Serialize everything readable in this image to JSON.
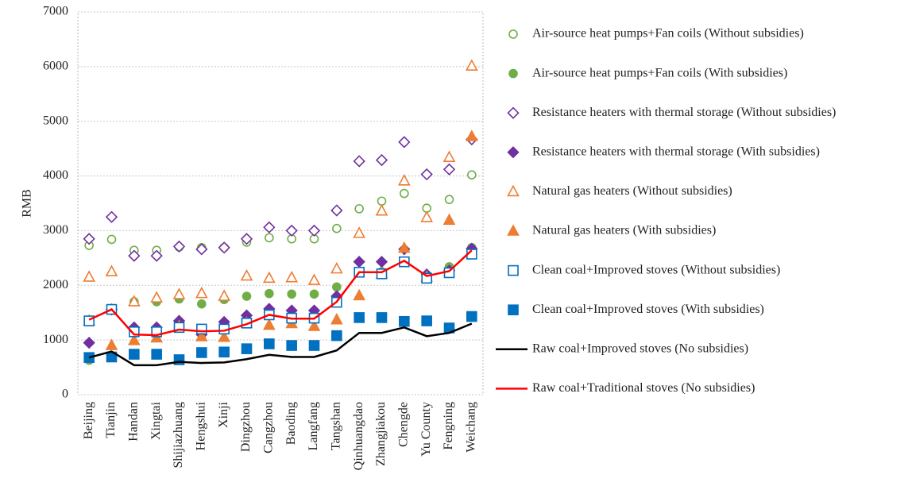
{
  "chart_data": {
    "type": "line",
    "y_label": "RMB",
    "categories": [
      "Beijing",
      "Tianjin",
      "Handan",
      "Xingtai",
      "Shijiazhuang",
      "Hengshui",
      "Xinji",
      "Dingzhou",
      "Cangzhou",
      "Baoding",
      "Langfang",
      "Tangshan",
      "Qinhuangdao",
      "Zhangjiakou",
      "Chengde",
      "Yu County",
      "Fengning",
      "Weichang"
    ],
    "ylim": [
      0,
      7000
    ],
    "yticks": [
      0,
      1000,
      2000,
      3000,
      4000,
      5000,
      6000,
      7000
    ],
    "grid": true,
    "legend": "right",
    "series": [
      {
        "name": "Air-source heat pumps+Fan coils (Without subsidies)",
        "color": "#70ad47",
        "marker": "circle",
        "filled": false,
        "values": [
          2730,
          2840,
          2640,
          2640,
          2700,
          2690,
          2690,
          2790,
          2870,
          2850,
          2850,
          3040,
          3400,
          3540,
          3680,
          3410,
          3570,
          4020
        ]
      },
      {
        "name": "Air-source heat pumps+Fan coils (With subsidies)",
        "color": "#70ad47",
        "marker": "circle",
        "filled": true,
        "values": [
          630,
          1540,
          1700,
          1700,
          1750,
          1660,
          1740,
          1800,
          1850,
          1840,
          1840,
          1970,
          2240,
          2250,
          2430,
          2190,
          2340,
          2690
        ]
      },
      {
        "name": "Resistance heaters with thermal storage (Without subsidies)",
        "color": "#7030a0",
        "marker": "diamond",
        "filled": false,
        "values": [
          2850,
          3250,
          2540,
          2540,
          2710,
          2660,
          2690,
          2850,
          3060,
          3000,
          3000,
          3370,
          4270,
          4290,
          4620,
          4030,
          4120,
          4670
        ]
      },
      {
        "name": "Resistance heaters with thermal storage (With subsidies)",
        "color": "#7030a0",
        "marker": "diamond",
        "filled": true,
        "values": [
          950,
          1560,
          1230,
          1230,
          1350,
          1100,
          1330,
          1450,
          1570,
          1540,
          1540,
          1800,
          2430,
          2430,
          2660,
          2200,
          2270,
          2670
        ]
      },
      {
        "name": "Natural gas heaters (Without subsidies)",
        "color": "#ed7d31",
        "marker": "triangle",
        "filled": false,
        "values": [
          2150,
          2250,
          1700,
          1770,
          1830,
          1850,
          1800,
          2170,
          2130,
          2140,
          2090,
          2300,
          2950,
          3360,
          3910,
          3240,
          4340,
          6010
        ]
      },
      {
        "name": "Natural gas heaters (With subsidies)",
        "color": "#ed7d31",
        "marker": "triangle",
        "filled": true,
        "values": [
          1350,
          900,
          990,
          1040,
          1250,
          1060,
          1050,
          1310,
          1270,
          1300,
          1250,
          1370,
          1810,
          2210,
          2680,
          2150,
          3190,
          4720
        ]
      },
      {
        "name": "Clean coal+Improved stoves (Without subsidies)",
        "color": "#0070c0",
        "marker": "square",
        "filled": false,
        "values": [
          1350,
          1560,
          1150,
          1150,
          1230,
          1200,
          1200,
          1310,
          1460,
          1400,
          1400,
          1690,
          2240,
          2210,
          2430,
          2130,
          2230,
          2570
        ]
      },
      {
        "name": "Clean coal+Improved stoves (With subsidies)",
        "color": "#0070c0",
        "marker": "square",
        "filled": true,
        "values": [
          680,
          690,
          740,
          740,
          640,
          770,
          780,
          840,
          930,
          900,
          900,
          1080,
          1410,
          1410,
          1340,
          1350,
          1220,
          1430
        ]
      },
      {
        "name": "Raw coal+Improved stoves (No subsidies)",
        "color": "#000000",
        "marker": "none",
        "filled": false,
        "values": [
          680,
          790,
          540,
          540,
          600,
          580,
          590,
          650,
          730,
          690,
          690,
          810,
          1130,
          1130,
          1230,
          1070,
          1130,
          1300
        ]
      },
      {
        "name": "Raw coal+Traditional stoves (No subsidies)",
        "color": "#ff0000",
        "marker": "none",
        "filled": false,
        "values": [
          1370,
          1560,
          1100,
          1090,
          1190,
          1160,
          1170,
          1290,
          1460,
          1390,
          1390,
          1700,
          2240,
          2240,
          2450,
          2170,
          2260,
          2640
        ]
      }
    ]
  }
}
